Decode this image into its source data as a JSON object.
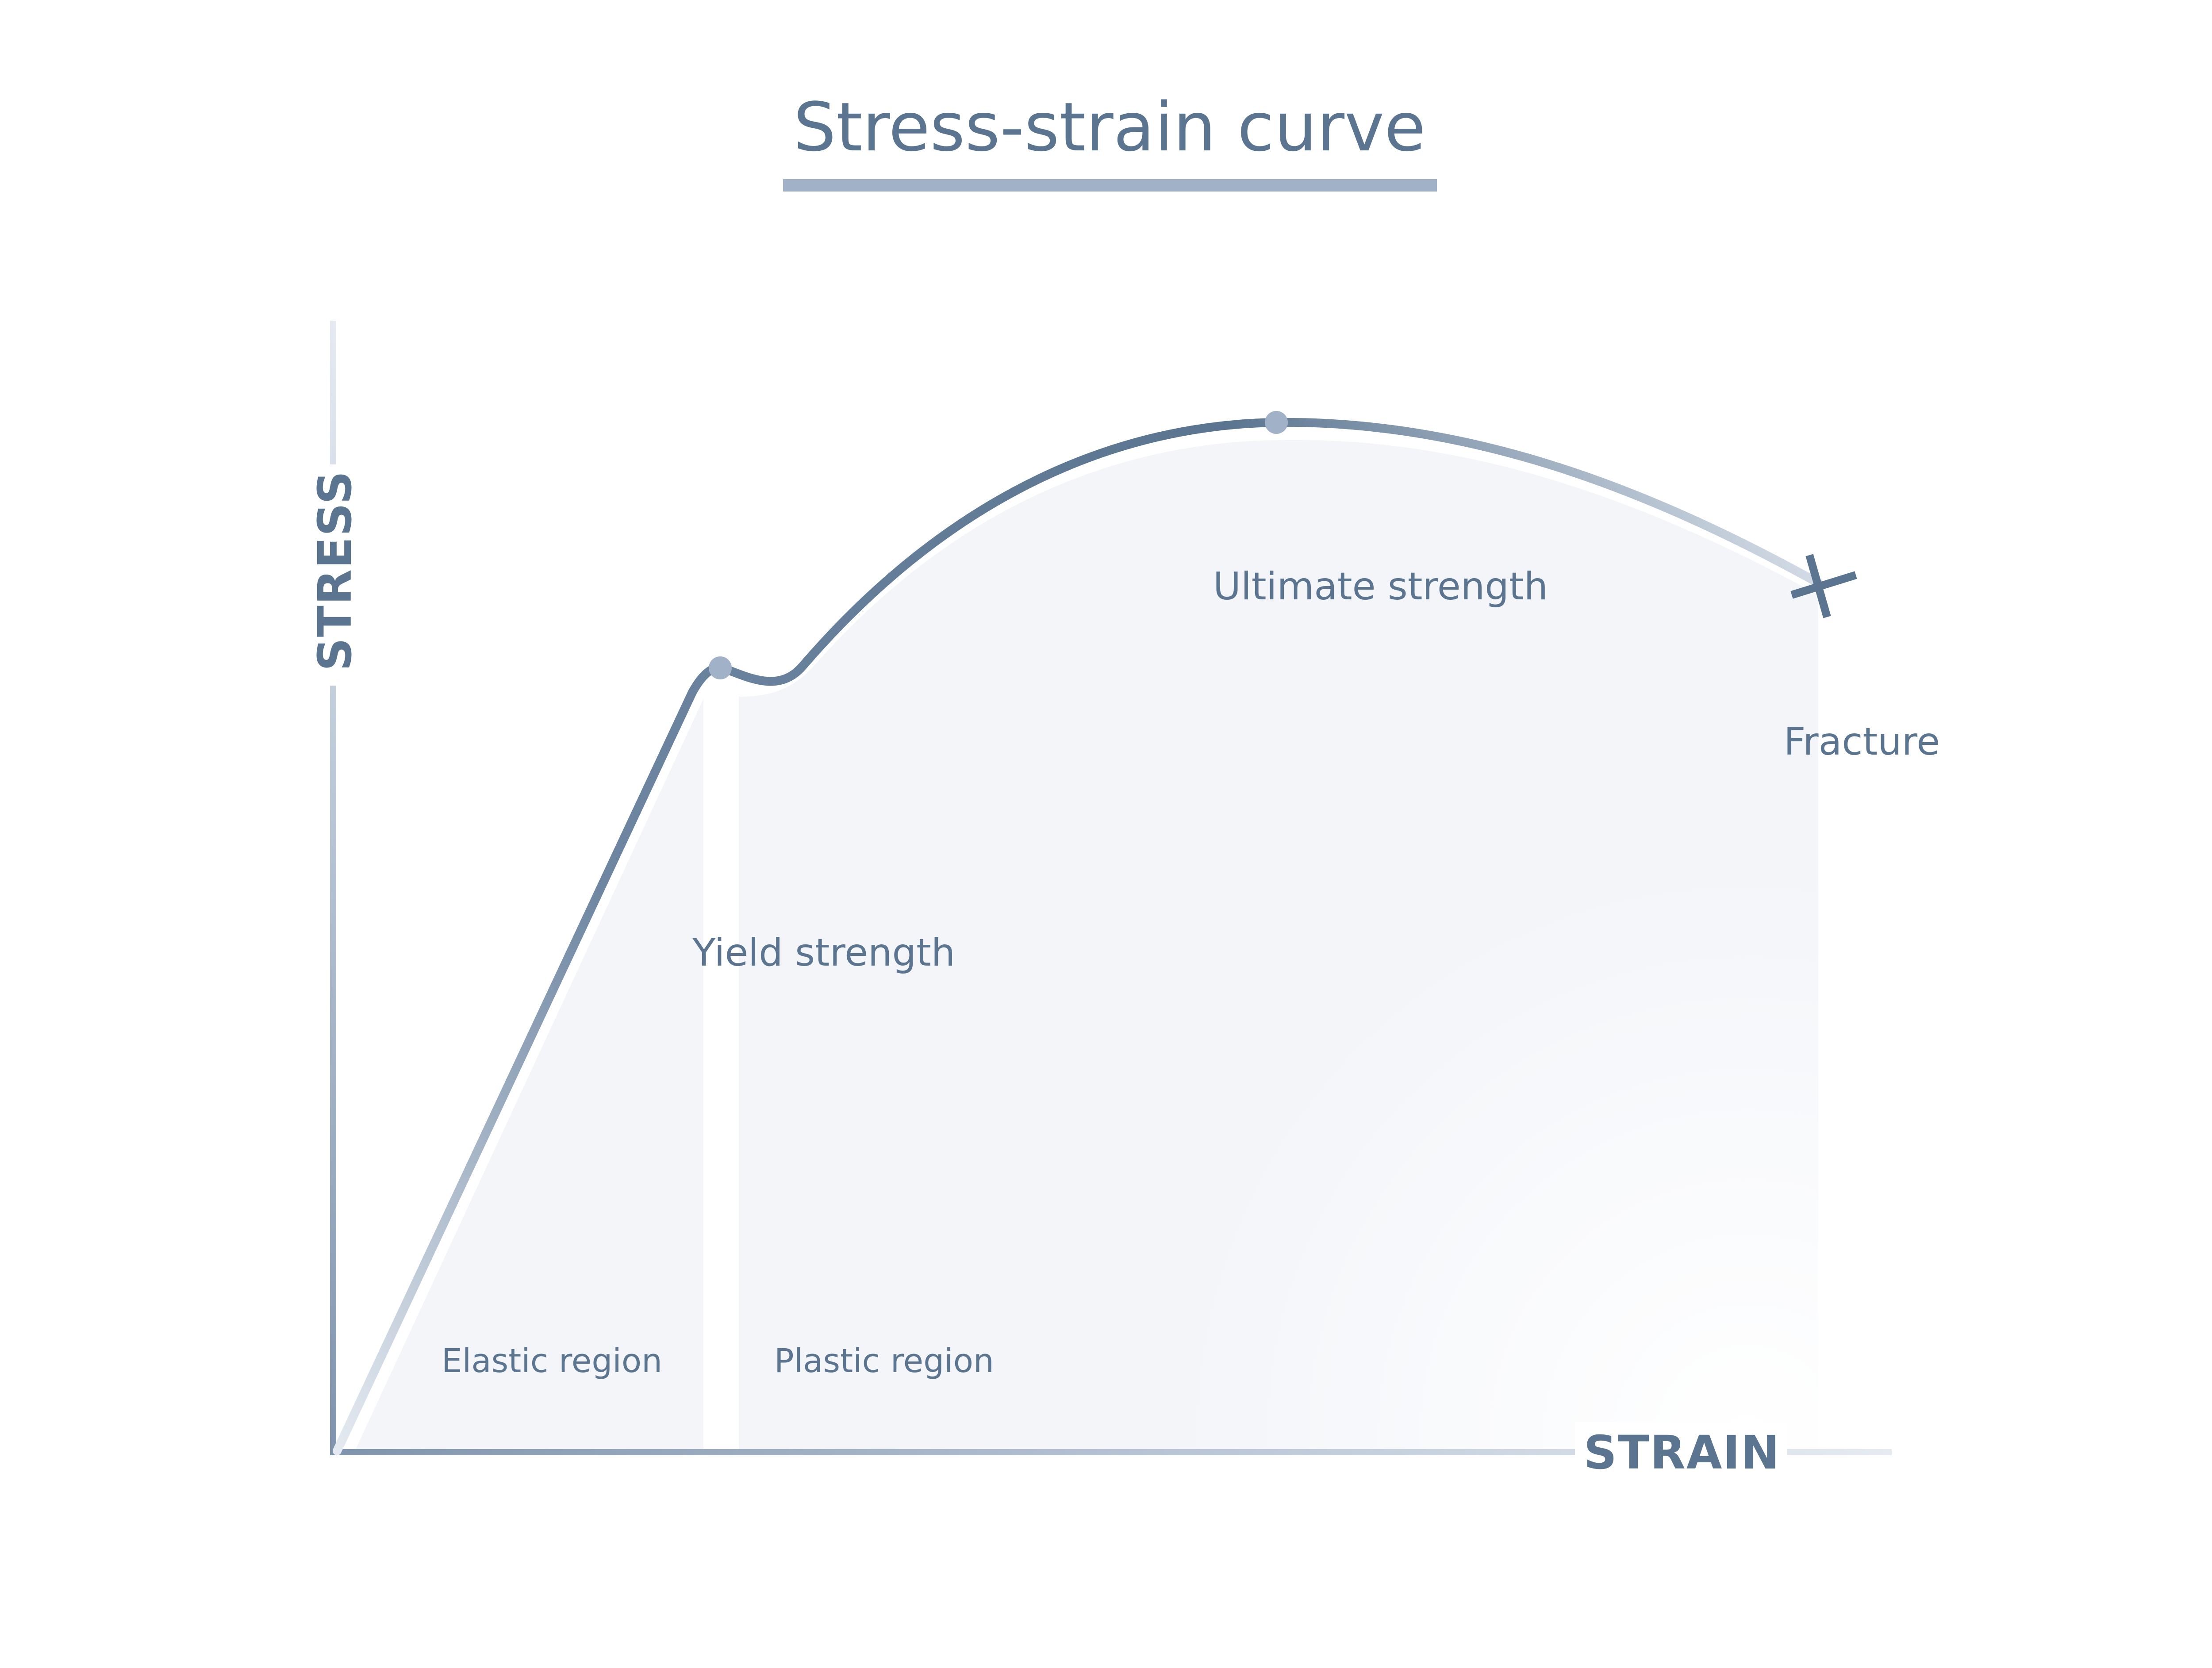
{
  "title": "Stress-strain curve",
  "axes": {
    "y_label": "STRESS",
    "x_label": "STRAIN"
  },
  "points": {
    "yield": "Yield strength",
    "ultimate": "Ultimate strength",
    "fracture": "Fracture"
  },
  "regions": {
    "elastic": "Elastic region",
    "plastic": "Plastic region"
  },
  "colors": {
    "curve": "#5b7590",
    "accent": "#a0b1c8",
    "fill": "#f3f5f9",
    "text": "#5b7590"
  }
}
